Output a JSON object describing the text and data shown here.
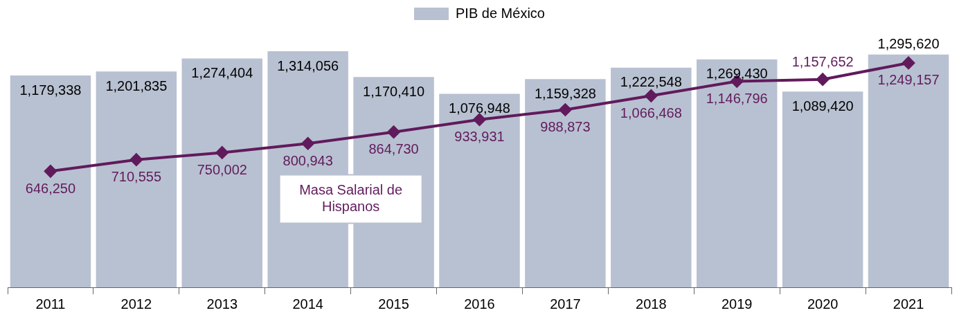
{
  "chart_data": {
    "type": "bar",
    "categories": [
      "2011",
      "2012",
      "2013",
      "2014",
      "2015",
      "2016",
      "2017",
      "2018",
      "2019",
      "2020",
      "2021"
    ],
    "series": [
      {
        "name": "PIB de México",
        "color": "#b8c1d1",
        "values": [
          1179338,
          1201835,
          1274404,
          1314056,
          1170410,
          1076948,
          1159328,
          1222548,
          1269430,
          1089420,
          1295620
        ],
        "value_labels": [
          "1,179,338",
          "1,201,835",
          "1,274,404",
          "1,314,056",
          "1,170,410",
          "1,076,948",
          "1,159,328",
          "1,222,548",
          "1,269,430",
          "1,089,420",
          "1,295,620"
        ]
      },
      {
        "name": "Masa Salarial de Hispanos",
        "type": "line",
        "color": "#611a5c",
        "marker": "diamond",
        "values": [
          646250,
          710555,
          750002,
          800943,
          864730,
          933931,
          988873,
          1066468,
          1146796,
          1157652,
          1249157
        ],
        "value_labels": [
          "646,250",
          "710,555",
          "750,002",
          "800,943",
          "864,730",
          "933,931",
          "988,873",
          "1,066,468",
          "1,146,796",
          "1,157,652",
          "1,249,157"
        ]
      }
    ],
    "legend": "top",
    "tick_labels": "x"
  }
}
